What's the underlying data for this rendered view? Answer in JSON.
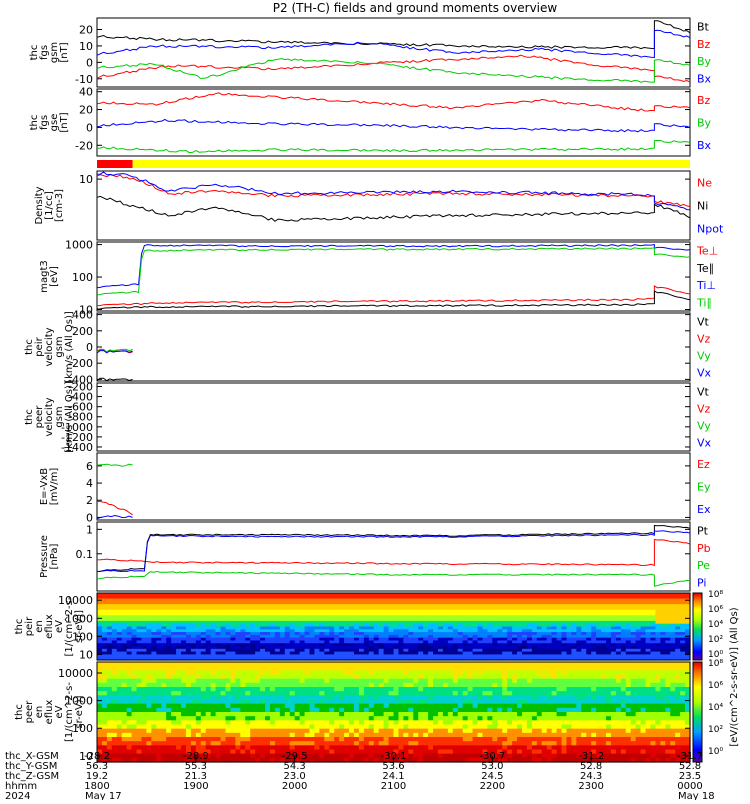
{
  "title": "P2 (TH-C) fields and ground moments overview",
  "chart_data": [
    {
      "id": "mag-gsm",
      "type": "line",
      "ylabel": [
        "thc",
        "fgs",
        "gsm",
        "[nT]"
      ],
      "ylim": [
        -15,
        27
      ],
      "yticks": [
        20,
        10,
        0,
        -10
      ],
      "legend": [
        {
          "name": "Bt",
          "color": "#000000"
        },
        {
          "name": "Bz",
          "color": "#ff0000"
        },
        {
          "name": "By",
          "color": "#00cc00"
        },
        {
          "name": "Bx",
          "color": "#0000ff"
        }
      ],
      "series": [
        {
          "name": "Bt",
          "x": [
            0,
            0.1,
            0.3,
            0.5,
            0.7,
            0.9,
            0.94,
            0.94,
            1
          ],
          "y": [
            16,
            14,
            12.5,
            11,
            9.5,
            9,
            8.5,
            26,
            18
          ]
        },
        {
          "name": "Bz",
          "x": [
            0,
            0.05,
            0.12,
            0.3,
            0.5,
            0.72,
            0.85,
            0.94,
            0.94,
            1
          ],
          "y": [
            -9,
            -6,
            -2,
            -4,
            0,
            4,
            -2,
            -5,
            -8,
            -12
          ]
        },
        {
          "name": "By",
          "x": [
            0,
            0.1,
            0.18,
            0.3,
            0.45,
            0.6,
            0.8,
            0.94,
            0.94,
            1
          ],
          "y": [
            -3,
            -1,
            -10,
            2,
            0,
            -6,
            -10,
            -12,
            2,
            -2
          ]
        },
        {
          "name": "Bx",
          "x": [
            0,
            0.1,
            0.3,
            0.45,
            0.6,
            0.75,
            0.94,
            0.94,
            1
          ],
          "y": [
            5,
            10,
            9,
            12,
            6,
            8,
            3,
            20,
            15
          ]
        }
      ]
    },
    {
      "id": "mag-gse",
      "type": "line",
      "ylabel": [
        "thc",
        "fgs",
        "gse",
        "[nT]"
      ],
      "ylim": [
        -32,
        43
      ],
      "yticks": [
        40,
        20,
        0,
        -20
      ],
      "legend": [
        {
          "name": "Bz",
          "color": "#ff0000"
        },
        {
          "name": "By",
          "color": "#00cc00"
        },
        {
          "name": "Bx",
          "color": "#0000ff"
        }
      ],
      "series": [
        {
          "name": "Bz",
          "x": [
            0,
            0.1,
            0.2,
            0.4,
            0.6,
            0.75,
            0.94,
            0.94,
            1
          ],
          "y": [
            28,
            26,
            38,
            30,
            22,
            30,
            18,
            24,
            22
          ]
        },
        {
          "name": "By",
          "x": [
            0,
            0.15,
            0.3,
            0.5,
            0.7,
            0.94,
            0.94,
            1
          ],
          "y": [
            -22,
            -27,
            -25,
            -26,
            -25,
            -24,
            -15,
            -17
          ]
        },
        {
          "name": "Bx",
          "x": [
            0,
            0.12,
            0.3,
            0.5,
            0.7,
            0.94,
            0.94,
            1
          ],
          "y": [
            2,
            8,
            4,
            2,
            -2,
            -4,
            4,
            0
          ]
        }
      ]
    },
    {
      "id": "mode-bar",
      "type": "bar",
      "segments": [
        {
          "from": 0,
          "to": 0.06,
          "color": "#ff0000"
        },
        {
          "from": 0.06,
          "to": 1,
          "color": "#ffff00"
        }
      ]
    },
    {
      "id": "density",
      "type": "line",
      "ylabel": [
        "Density",
        "[1/cc]",
        "[cm-3]"
      ],
      "ylim": [
        0.8,
        14
      ],
      "log": true,
      "yticks": [
        10
      ],
      "legend": [
        {
          "name": "Ne",
          "color": "#ff0000"
        },
        {
          "name": "Ni",
          "color": "#000000"
        },
        {
          "name": "Npot",
          "color": "#0000ff"
        }
      ],
      "series": [
        {
          "name": "Ne",
          "x": [
            0,
            0.05,
            0.12,
            0.2,
            0.3,
            0.6,
            0.94,
            0.94,
            1
          ],
          "y": [
            12,
            11,
            5.5,
            6,
            5,
            5.5,
            5,
            4,
            3.2
          ]
        },
        {
          "name": "Ni",
          "x": [
            0,
            0.05,
            0.12,
            0.2,
            0.3,
            0.6,
            0.94,
            0.94,
            1
          ],
          "y": [
            5,
            3.5,
            2.2,
            3,
            1.8,
            2.2,
            2.5,
            3.5,
            2
          ]
        },
        {
          "name": "Npot",
          "x": [
            0,
            0.05,
            0.12,
            0.2,
            0.3,
            0.6,
            0.94,
            0.94,
            1
          ],
          "y": [
            13,
            12,
            6,
            8,
            5.5,
            6,
            5.2,
            3.8,
            2.8
          ]
        }
      ]
    },
    {
      "id": "temperature",
      "type": "line",
      "ylabel": [
        "magt3",
        "[eV]"
      ],
      "ylim": [
        9,
        1200
      ],
      "log": true,
      "yticks": [
        1000,
        100,
        10
      ],
      "legend": [
        {
          "name": "Te⊥",
          "color": "#ff0000"
        },
        {
          "name": "Te∥",
          "color": "#000000"
        },
        {
          "name": "Ti⊥",
          "color": "#0000ff"
        },
        {
          "name": "Ti∥",
          "color": "#00cc00"
        }
      ],
      "series": [
        {
          "name": "Te⊥",
          "x": [
            0,
            0.08,
            0.1,
            0.5,
            0.9,
            0.94,
            0.94,
            1
          ],
          "y": [
            14,
            15,
            16,
            18,
            20,
            22,
            50,
            30
          ]
        },
        {
          "name": "Te∥",
          "x": [
            0,
            0.08,
            0.1,
            0.5,
            0.9,
            0.94,
            0.94,
            1
          ],
          "y": [
            11,
            12,
            12,
            13,
            14,
            15,
            35,
            20
          ]
        },
        {
          "name": "Ti⊥",
          "x": [
            0,
            0.07,
            0.08,
            0.3,
            0.6,
            0.94,
            0.94,
            1
          ],
          "y": [
            50,
            60,
            950,
            900,
            900,
            950,
            800,
            700
          ]
        },
        {
          "name": "Ti∥",
          "x": [
            0,
            0.07,
            0.08,
            0.3,
            0.6,
            0.94,
            0.94,
            1
          ],
          "y": [
            30,
            35,
            650,
            700,
            720,
            760,
            500,
            420
          ]
        }
      ]
    },
    {
      "id": "peir-velocity",
      "type": "line",
      "ylabel": [
        "thc",
        "peir",
        "velocity",
        "gsm",
        "[km/s (All Qs)]"
      ],
      "ylim": [
        -420,
        420
      ],
      "yticks": [
        400,
        200,
        0,
        -200,
        -400
      ],
      "legend": [
        {
          "name": "Vt",
          "color": "#000000"
        },
        {
          "name": "Vz",
          "color": "#ff0000"
        },
        {
          "name": "Vy",
          "color": "#00cc00"
        },
        {
          "name": "Vx",
          "color": "#0000ff"
        }
      ],
      "series": [
        {
          "name": "Vt",
          "x": [
            0,
            0.06
          ],
          "y": [
            -400,
            -400
          ]
        },
        {
          "name": "Vz",
          "x": [
            0,
            0.06
          ],
          "y": [
            -40,
            -60
          ]
        },
        {
          "name": "Vy",
          "x": [
            0,
            0.06
          ],
          "y": [
            -50,
            -30
          ]
        },
        {
          "name": "Vx",
          "x": [
            0,
            0.06
          ],
          "y": [
            -60,
            -50
          ]
        }
      ]
    },
    {
      "id": "peer-velocity",
      "type": "line",
      "ylabel": [
        "thc",
        "peer",
        "velocity",
        "gsm",
        "[km/s (All Qs)]"
      ],
      "ylim": [
        -1480,
        -130
      ],
      "yticks": [
        -200,
        -400,
        -600,
        -800,
        -1000,
        -1200,
        -1400
      ],
      "legend": [
        {
          "name": "Vt",
          "color": "#000000"
        },
        {
          "name": "Vz",
          "color": "#ff0000"
        },
        {
          "name": "Vy",
          "color": "#00cc00"
        },
        {
          "name": "Vx",
          "color": "#0000ff"
        }
      ],
      "series": []
    },
    {
      "id": "efield",
      "type": "line",
      "ylabel": [
        "E=-VxB",
        "[mV/m]"
      ],
      "ylim": [
        -0.3,
        7.5
      ],
      "yticks": [
        6,
        4,
        2,
        0
      ],
      "legend": [
        {
          "name": "Ez",
          "color": "#ff0000"
        },
        {
          "name": "Ey",
          "color": "#00cc00"
        },
        {
          "name": "Ex",
          "color": "#0000ff"
        }
      ],
      "series": [
        {
          "name": "Ez",
          "x": [
            0,
            0.02,
            0.04,
            0.06
          ],
          "y": [
            2,
            1.5,
            1,
            0.3
          ]
        },
        {
          "name": "Ey",
          "x": [
            0,
            0.03,
            0.06
          ],
          "y": [
            6.2,
            6,
            6.1
          ]
        },
        {
          "name": "Ex",
          "x": [
            0,
            0.03,
            0.06
          ],
          "y": [
            0,
            0.1,
            0
          ]
        }
      ]
    },
    {
      "id": "pressure",
      "type": "line",
      "ylabel": [
        "Pressure",
        "[nPa]"
      ],
      "ylim": [
        0.003,
        2
      ],
      "log": true,
      "yticks": [
        1,
        0.1
      ],
      "legend": [
        {
          "name": "Pt",
          "color": "#000000"
        },
        {
          "name": "Pb",
          "color": "#ff0000"
        },
        {
          "name": "Pe",
          "color": "#00cc00"
        },
        {
          "name": "Pi",
          "color": "#0000ff"
        }
      ],
      "series": [
        {
          "name": "Pt",
          "x": [
            0,
            0.08,
            0.09,
            0.3,
            0.6,
            0.94,
            0.94,
            1
          ],
          "y": [
            0.02,
            0.025,
            0.6,
            0.6,
            0.55,
            0.7,
            1.5,
            1.1
          ]
        },
        {
          "name": "Pb",
          "x": [
            0,
            0.08,
            0.09,
            0.5,
            0.94,
            0.94,
            1
          ],
          "y": [
            0.06,
            0.05,
            0.045,
            0.04,
            0.035,
            0.4,
            0.25
          ]
        },
        {
          "name": "Pe",
          "x": [
            0,
            0.08,
            0.09,
            0.5,
            0.94,
            0.94,
            1
          ],
          "y": [
            0.01,
            0.012,
            0.018,
            0.014,
            0.014,
            0.005,
            0.008
          ]
        },
        {
          "name": "Pi",
          "x": [
            0,
            0.08,
            0.09,
            0.3,
            0.6,
            0.94,
            0.94,
            1
          ],
          "y": [
            0.02,
            0.02,
            0.55,
            0.5,
            0.5,
            0.6,
            0.9,
            0.7
          ]
        }
      ]
    },
    {
      "id": "peir-spectrogram",
      "type": "heatmap",
      "ylabel": [
        "thc",
        "peir",
        "en",
        "eflux",
        "eV",
        "[1/(cm^2-s-",
        "sr-eV)]"
      ],
      "ylim": [
        5,
        25000
      ],
      "log": true,
      "yticks": [
        10000,
        1000,
        100,
        10
      ]
    },
    {
      "id": "peer-spectrogram",
      "type": "heatmap",
      "ylabel": [
        "thc",
        "peer",
        "en",
        "eflux",
        "eV",
        "[1/(cm^2-s-",
        "sr-eV)]"
      ],
      "ylim": [
        6,
        25000
      ],
      "log": true,
      "yticks": [
        10000,
        1000,
        100,
        10
      ]
    }
  ],
  "colorbar": {
    "label": "[eV/(cm^2-s-sr-eV)]  (All Qs)",
    "ticks": [
      "10⁸",
      "10⁶",
      "10⁴",
      "10²",
      "10⁰",
      "10⁸",
      "10⁶",
      "10⁴",
      "10²",
      "10⁰"
    ]
  },
  "xaxis": {
    "row_labels": [
      "thc_X-GSM",
      "thc_Y-GSM",
      "thc_Z-GSM",
      "hhmm",
      "2024"
    ],
    "ticks": [
      {
        "frac": 0.0,
        "values": [
          "-28.2",
          "56.3",
          "19.2",
          "1800",
          "May 17"
        ]
      },
      {
        "frac": 0.1667,
        "values": [
          "-28.9",
          "55.3",
          "21.3",
          "1900",
          ""
        ]
      },
      {
        "frac": 0.3333,
        "values": [
          "-29.5",
          "54.3",
          "23.0",
          "2000",
          ""
        ]
      },
      {
        "frac": 0.5,
        "values": [
          "-30.1",
          "53.6",
          "24.1",
          "2100",
          ""
        ]
      },
      {
        "frac": 0.6667,
        "values": [
          "-30.7",
          "53.0",
          "24.5",
          "2200",
          ""
        ]
      },
      {
        "frac": 0.8333,
        "values": [
          "-31.2",
          "52.8",
          "24.3",
          "2300",
          ""
        ]
      },
      {
        "frac": 1.0,
        "values": [
          "-31.7",
          "52.8",
          "23.5",
          "0000",
          "May 18"
        ]
      }
    ]
  }
}
